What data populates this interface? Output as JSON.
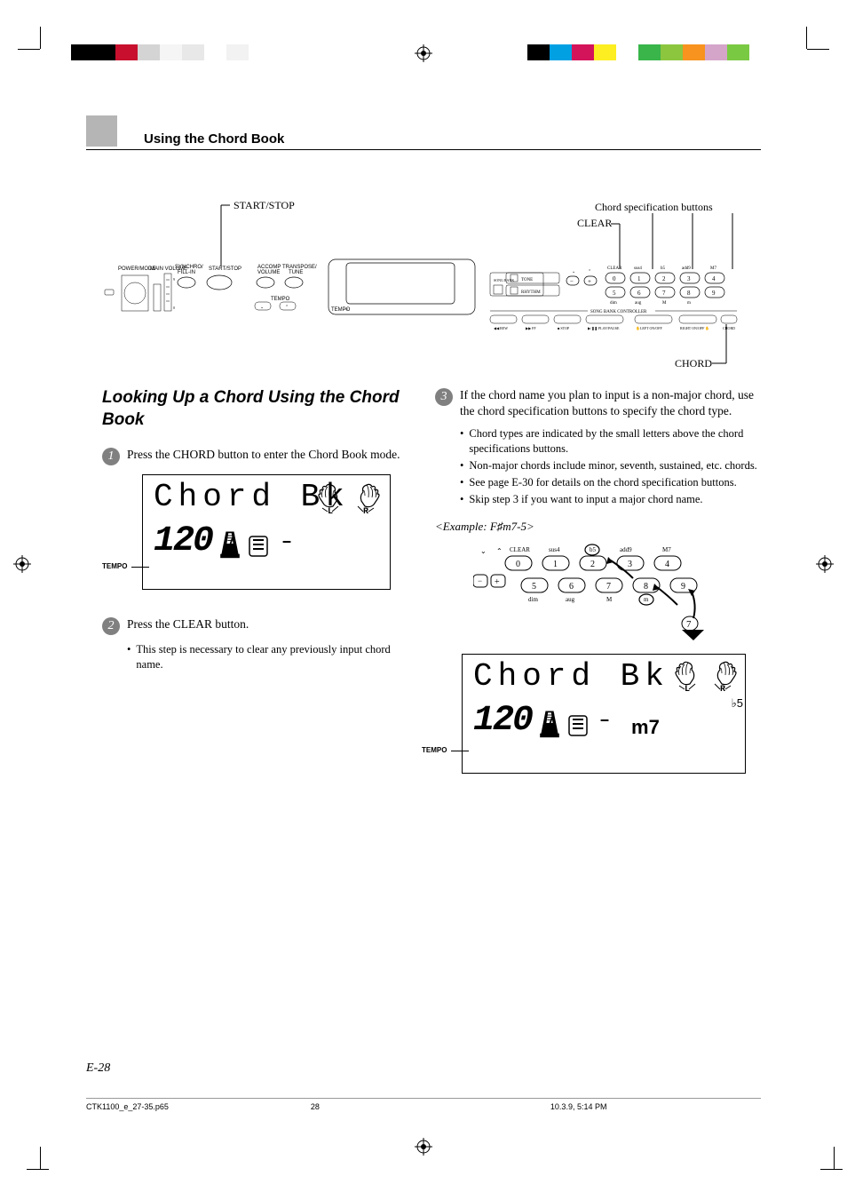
{
  "colorBars": {
    "left": [
      "#000000",
      "#000000",
      "#c8102e",
      "#d4d4d4",
      "#f5f5f5",
      "#e8e8e8",
      "#ffffff",
      "#f2f2f2"
    ],
    "right": [
      "#000000",
      "#00a0e3",
      "#d4145a",
      "#fcee21",
      "#ffffff",
      "#39b54a",
      "#8cc63f",
      "#f7931e",
      "#d4a5c9",
      "#7ac943"
    ]
  },
  "header": {
    "sectionTitle": "Using the Chord Book"
  },
  "diagram": {
    "startStop": "START/STOP",
    "chordSpec": "Chord specification buttons",
    "clear": "CLEAR",
    "chord": "CHORD",
    "panelLabels": {
      "powerMode": "POWER/MODE",
      "mainVolume": "MAIN VOLUME",
      "synchroFillIn": "SYNCHRO/\nFILL-IN",
      "startStop": "START/STOP",
      "accompVolume": "ACCOMP\nVOLUME",
      "transposeTune": "TRANSPOSE/\nTUNE",
      "tempo": "TEMPO",
      "tone": "TONE",
      "rhythm": "RHYTHM",
      "songBank": "SONG BANK",
      "songBankController": "SONG BANK CONTROLLER",
      "rew": "REW",
      "ff": "FF",
      "stop": "STOP",
      "playPause": "PLAY/PAUSE",
      "leftOnOff": "LEFT ON/OFF",
      "rightOnOff": "RIGHT ON/OFF",
      "chordBtn": "CHORD",
      "clearBtn": "CLEAR",
      "sus4": "sus4",
      "b5": "b5",
      "add9": "add9",
      "m7": "M7",
      "dim": "dim",
      "aug": "aug",
      "M": "M",
      "m": "m"
    }
  },
  "leftCol": {
    "title": "Looking Up a Chord Using the Chord Book",
    "step1": "Press the CHORD button to enter the Chord Book mode.",
    "lcd1": {
      "title": "Chord Bk",
      "tempo": "120",
      "tempoLabel": "TEMPO"
    },
    "step2": "Press the CLEAR button.",
    "step2bullet": "This step is necessary to clear any previously input chord name."
  },
  "rightCol": {
    "step3": "If the chord name you plan to input is a non-major chord, use the chord specification buttons to specify the chord type.",
    "step3bullets": [
      "Chord types are indicated by the small letters above the chord specifications buttons.",
      "Non-major chords include minor, seventh, sustained, etc. chords.",
      "See page E-30 for details on the chord specification buttons.",
      "Skip step 3 if you want to input a major chord name."
    ],
    "example": "<Example: F♯m7-5>",
    "buttonLabels": {
      "clear": "CLEAR",
      "sus4": "sus4",
      "b5": "b5",
      "add9": "add9",
      "m7": "M7",
      "dim": "dim",
      "aug": "aug",
      "M": "M",
      "m": "m",
      "nums": [
        "0",
        "1",
        "2",
        "3",
        "4",
        "5",
        "6",
        "7",
        "8",
        "9"
      ]
    },
    "lcd2": {
      "title": "Chord Bk",
      "tempo": "120",
      "tempoLabel": "TEMPO",
      "m7": "m7",
      "b5": "♭5"
    }
  },
  "footer": {
    "pageNum": "E-28",
    "file": "CTK1100_e_27-35.p65",
    "pageNo": "28",
    "datetime": "10.3.9, 5:14 PM"
  }
}
